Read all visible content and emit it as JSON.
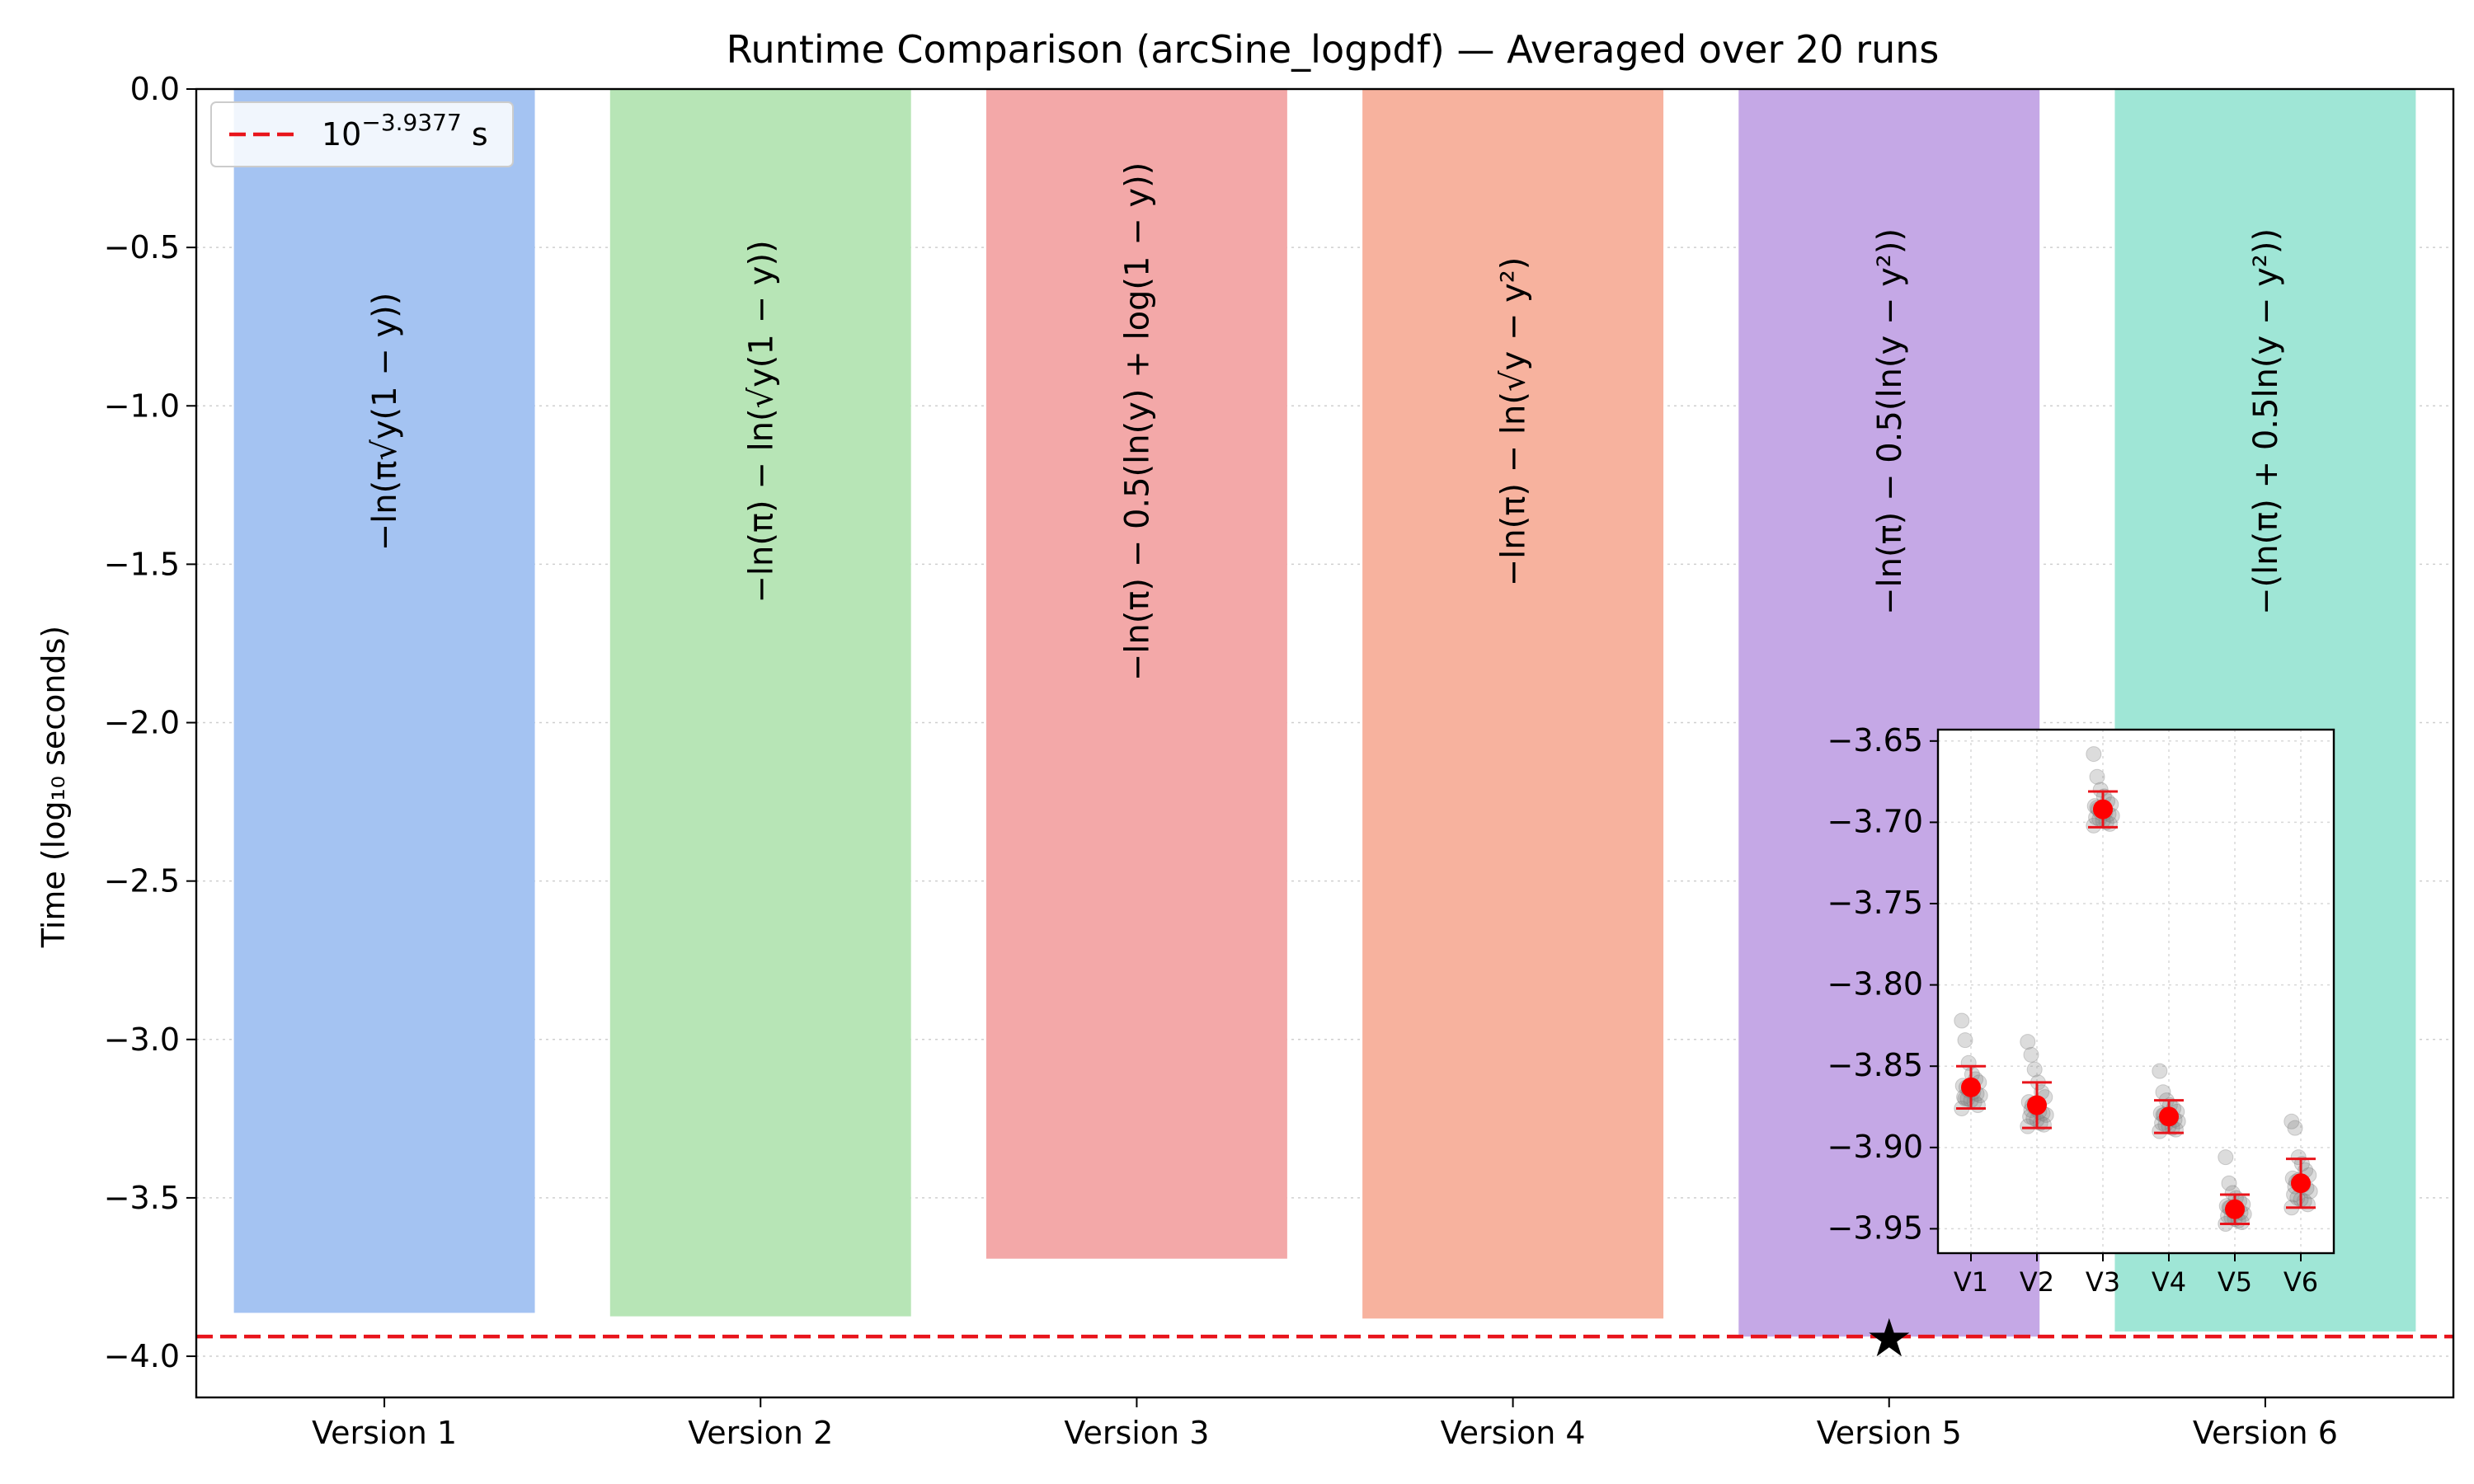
{
  "chart_data": {
    "type": "bar",
    "title": "Runtime Comparison (arcSine_logpdf) — Averaged over 20 runs",
    "xlabel": "",
    "ylabel": "Time (log₁₀ seconds)",
    "ylim": [
      -4.13,
      0.0
    ],
    "yticks": [
      "0.0",
      "−0.5",
      "−1.0",
      "−1.5",
      "−2.0",
      "−2.5",
      "−3.0",
      "−3.5",
      "−4.0"
    ],
    "ytick_values": [
      0.0,
      -0.5,
      -1.0,
      -1.5,
      -2.0,
      -2.5,
      -3.0,
      -3.5,
      -4.0
    ],
    "grid": "horizontal dotted",
    "categories": [
      "Version 1",
      "Version 2",
      "Version 3",
      "Version 4",
      "Version 5",
      "Version 6"
    ],
    "values": [
      -3.863,
      -3.874,
      -3.692,
      -3.881,
      -3.938,
      -3.922
    ],
    "colors": [
      "#a4c3f2",
      "#b7e5b6",
      "#f3a8a8",
      "#f7b29e",
      "#c5a8e6",
      "#9fe6d6"
    ],
    "formulas": [
      "−ln(π√y(1 − y))",
      "−ln(π) − ln(√y(1 − y))",
      "−ln(π) − 0.5(ln(y) + log(1 − y))",
      "−ln(π) − ln(√y − y²)",
      "−ln(π) − 0.5(ln(y − y²))",
      "−(ln(π) + 0.5ln(y − y²))"
    ],
    "reference_line": {
      "value": -3.9377,
      "label_base": "10",
      "label_exponent": "−3.9377",
      "label_unit": " s",
      "color": "#e8141b",
      "style": "dashed"
    },
    "best_marker": {
      "category": "Version 5",
      "value": -3.938,
      "symbol": "★"
    },
    "legend": {
      "placement": "top-left"
    },
    "inset": {
      "type": "scatter",
      "categories": [
        "V1",
        "V2",
        "V3",
        "V4",
        "V5",
        "V6"
      ],
      "ylim": [
        -3.965,
        -3.643
      ],
      "yticks": [
        "−3.65",
        "−3.70",
        "−3.75",
        "−3.80",
        "−3.85",
        "−3.90",
        "−3.95"
      ],
      "ytick_values": [
        -3.65,
        -3.7,
        -3.75,
        -3.8,
        -3.85,
        -3.9,
        -3.95
      ],
      "means": [
        -3.863,
        -3.874,
        -3.692,
        -3.881,
        -3.938,
        -3.922
      ],
      "errors": [
        0.013,
        0.014,
        0.011,
        0.01,
        0.009,
        0.015
      ],
      "runs": [
        [
          -3.822,
          -3.834,
          -3.848,
          -3.855,
          -3.858,
          -3.86,
          -3.862,
          -3.863,
          -3.864,
          -3.866,
          -3.867,
          -3.868,
          -3.869,
          -3.87,
          -3.871,
          -3.872,
          -3.874,
          -3.876,
          -3.87,
          -3.865
        ],
        [
          -3.835,
          -3.843,
          -3.852,
          -3.86,
          -3.866,
          -3.869,
          -3.872,
          -3.874,
          -3.876,
          -3.878,
          -3.879,
          -3.88,
          -3.881,
          -3.882,
          -3.883,
          -3.885,
          -3.886,
          -3.887,
          -3.877,
          -3.873
        ],
        [
          -3.658,
          -3.672,
          -3.68,
          -3.684,
          -3.687,
          -3.689,
          -3.69,
          -3.692,
          -3.693,
          -3.694,
          -3.695,
          -3.696,
          -3.697,
          -3.698,
          -3.699,
          -3.7,
          -3.701,
          -3.702,
          -3.691,
          -3.694
        ],
        [
          -3.853,
          -3.866,
          -3.871,
          -3.874,
          -3.876,
          -3.878,
          -3.879,
          -3.88,
          -3.881,
          -3.882,
          -3.883,
          -3.884,
          -3.885,
          -3.886,
          -3.887,
          -3.888,
          -3.889,
          -3.89,
          -3.88,
          -3.882
        ],
        [
          -3.906,
          -3.922,
          -3.928,
          -3.931,
          -3.933,
          -3.935,
          -3.936,
          -3.937,
          -3.938,
          -3.939,
          -3.94,
          -3.941,
          -3.942,
          -3.943,
          -3.944,
          -3.945,
          -3.946,
          -3.947,
          -3.937,
          -3.939
        ],
        [
          -3.884,
          -3.888,
          -3.906,
          -3.91,
          -3.914,
          -3.917,
          -3.919,
          -3.921,
          -3.922,
          -3.923,
          -3.925,
          -3.927,
          -3.929,
          -3.931,
          -3.932,
          -3.933,
          -3.935,
          -3.937,
          -3.924,
          -3.92
        ]
      ]
    }
  }
}
